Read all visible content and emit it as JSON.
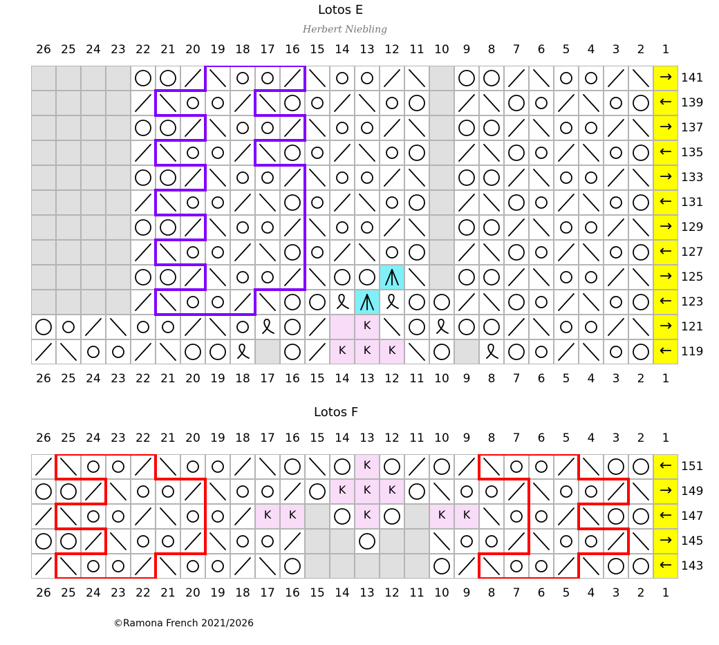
{
  "charts": [
    {
      "title": "Lotos E",
      "byline": "Herbert Niebling",
      "column_labels": [
        "26",
        "25",
        "24",
        "23",
        "22",
        "21",
        "20",
        "19",
        "18",
        "17",
        "16",
        "15",
        "14",
        "13",
        "12",
        "11",
        "10",
        "9",
        "8",
        "7",
        "6",
        "5",
        "4",
        "3",
        "2",
        "1"
      ],
      "rows": [
        {
          "number": "141",
          "arrow": "→",
          "cells": [
            "shade",
            "shade",
            "shade",
            "shade",
            "O",
            "O",
            "/",
            "\\",
            "o",
            "o",
            "/",
            "\\",
            "o",
            "o",
            "/",
            "\\",
            "shade",
            "O",
            "O",
            "/",
            "\\",
            "o",
            "o",
            "/",
            "\\",
            "arrow"
          ]
        },
        {
          "number": "139",
          "arrow": "←",
          "cells": [
            "shade",
            "shade",
            "shade",
            "shade",
            "/",
            "\\",
            "o",
            "o",
            "/",
            "\\",
            "O",
            "o",
            "/",
            "\\",
            "o",
            "O",
            "shade",
            "/",
            "\\",
            "O",
            "o",
            "/",
            "\\",
            "o",
            "O",
            "arrow"
          ]
        },
        {
          "number": "137",
          "arrow": "→",
          "cells": [
            "shade",
            "shade",
            "shade",
            "shade",
            "O",
            "O",
            "/",
            "\\",
            "o",
            "o",
            "/",
            "\\",
            "o",
            "o",
            "/",
            "\\",
            "shade",
            "O",
            "O",
            "/",
            "\\",
            "o",
            "o",
            "/",
            "\\",
            "arrow"
          ]
        },
        {
          "number": "135",
          "arrow": "←",
          "cells": [
            "shade",
            "shade",
            "shade",
            "shade",
            "/",
            "\\",
            "o",
            "o",
            "/",
            "\\",
            "O",
            "o",
            "/",
            "\\",
            "o",
            "O",
            "shade",
            "/",
            "\\",
            "O",
            "o",
            "/",
            "\\",
            "o",
            "O",
            "arrow"
          ]
        },
        {
          "number": "133",
          "arrow": "→",
          "cells": [
            "shade",
            "shade",
            "shade",
            "shade",
            "O",
            "O",
            "/",
            "\\",
            "o",
            "o",
            "/",
            "\\",
            "o",
            "o",
            "/",
            "\\",
            "shade",
            "O",
            "O",
            "/",
            "\\",
            "o",
            "o",
            "/",
            "\\",
            "arrow"
          ]
        },
        {
          "number": "131",
          "arrow": "←",
          "cells": [
            "shade",
            "shade",
            "shade",
            "shade",
            "/",
            "\\",
            "o",
            "o",
            "/",
            "\\",
            "O",
            "o",
            "/",
            "\\",
            "o",
            "O",
            "shade",
            "/",
            "\\",
            "O",
            "o",
            "/",
            "\\",
            "o",
            "O",
            "arrow"
          ]
        },
        {
          "number": "129",
          "arrow": "→",
          "cells": [
            "shade",
            "shade",
            "shade",
            "shade",
            "O",
            "O",
            "/",
            "\\",
            "o",
            "o",
            "/",
            "\\",
            "o",
            "o",
            "/",
            "\\",
            "shade",
            "O",
            "O",
            "/",
            "\\",
            "o",
            "o",
            "/",
            "\\",
            "arrow"
          ]
        },
        {
          "number": "127",
          "arrow": "←",
          "cells": [
            "shade",
            "shade",
            "shade",
            "shade",
            "/",
            "\\",
            "o",
            "o",
            "/",
            "\\",
            "O",
            "o",
            "/",
            "\\",
            "o",
            "O",
            "shade",
            "/",
            "\\",
            "O",
            "o",
            "/",
            "\\",
            "o",
            "O",
            "arrow"
          ]
        },
        {
          "number": "125",
          "arrow": "→",
          "cells": [
            "shade",
            "shade",
            "shade",
            "shade",
            "O",
            "O",
            "/",
            "\\",
            "o",
            "o",
            "/",
            "\\",
            "O",
            "O",
            "A",
            "\\",
            "shade",
            "O",
            "O",
            "/",
            "\\",
            "o",
            "o",
            "/",
            "\\",
            "arrow"
          ]
        },
        {
          "number": "123",
          "arrow": "←",
          "cells": [
            "shade",
            "shade",
            "shade",
            "shade",
            "/",
            "\\",
            "o",
            "o",
            "/",
            "\\",
            "O",
            "O",
            "Q",
            "A",
            "Q",
            "O",
            "O",
            "/",
            "\\",
            "O",
            "o",
            "/",
            "\\",
            "o",
            "O",
            "arrow"
          ]
        },
        {
          "number": "121",
          "arrow": "→",
          "cells": [
            "O",
            "o",
            "/",
            "\\",
            "o",
            "o",
            "/",
            "\\",
            "o",
            "Q",
            "O",
            "/",
            "blank",
            "K",
            "\\",
            "O",
            "Q",
            "O",
            "O",
            "/",
            "\\",
            "o",
            "o",
            "/",
            "\\",
            "arrow"
          ]
        },
        {
          "number": "119",
          "arrow": "←",
          "cells": [
            "/",
            "\\",
            "o",
            "o",
            "/",
            "\\",
            "O",
            "O",
            "Q",
            "shade",
            "O",
            "/",
            "K",
            "K",
            "K",
            "\\",
            "O",
            "shade",
            "Q",
            "O",
            "o",
            "/",
            "\\",
            "o",
            "O",
            "arrow"
          ]
        }
      ]
    },
    {
      "title": "Lotos F",
      "column_labels": [
        "26",
        "25",
        "24",
        "23",
        "22",
        "21",
        "20",
        "19",
        "18",
        "17",
        "16",
        "15",
        "14",
        "13",
        "12",
        "11",
        "10",
        "9",
        "8",
        "7",
        "6",
        "5",
        "4",
        "3",
        "2",
        "1"
      ],
      "rows": [
        {
          "number": "151",
          "arrow": "←",
          "cells": [
            "/",
            "\\",
            "o",
            "o",
            "/",
            "\\",
            "o",
            "o",
            "/",
            "\\",
            "O",
            "\\",
            "O",
            "K",
            "O",
            "/",
            "O",
            "/",
            "\\",
            "o",
            "o",
            "/",
            "\\",
            "O",
            "O",
            "arrow"
          ]
        },
        {
          "number": "149",
          "arrow": "→",
          "cells": [
            "O",
            "O",
            "/",
            "\\",
            "o",
            "o",
            "/",
            "\\",
            "o",
            "o",
            "/",
            "O",
            "K",
            "K",
            "K",
            "O",
            "\\",
            "o",
            "o",
            "/",
            "\\",
            "o",
            "o",
            "/",
            "\\",
            "arrow"
          ]
        },
        {
          "number": "147",
          "arrow": "←",
          "cells": [
            "/",
            "\\",
            "o",
            "o",
            "/",
            "\\",
            "o",
            "o",
            "/",
            "K",
            "K",
            "shade",
            "O",
            "K",
            "O",
            "shade",
            "K",
            "K",
            "\\",
            "o",
            "o",
            "/",
            "\\",
            "O",
            "O",
            "arrow"
          ]
        },
        {
          "number": "145",
          "arrow": "→",
          "cells": [
            "O",
            "O",
            "/",
            "\\",
            "o",
            "o",
            "/",
            "\\",
            "o",
            "o",
            "/",
            "shade",
            "shade",
            "O",
            "shade",
            "shade",
            "\\",
            "o",
            "o",
            "/",
            "\\",
            "o",
            "o",
            "/",
            "\\",
            "arrow"
          ]
        },
        {
          "number": "143",
          "arrow": "←",
          "cells": [
            "/",
            "\\",
            "o",
            "o",
            "/",
            "\\",
            "o",
            "o",
            "/",
            "\\",
            "O",
            "shade",
            "shade",
            "shade",
            "shade",
            "shade",
            "O",
            "/",
            "\\",
            "o",
            "o",
            "/",
            "\\",
            "O",
            "O",
            "arrow"
          ]
        }
      ]
    }
  ],
  "copyright": "©Ramona French 2021/2026",
  "colors": {
    "highlight_e": "#8000ff",
    "highlight_f": "#ff0000",
    "arrow_bg": "#ffff00",
    "knit_bg": "#f8dcf8",
    "cyan_bg": "#7ff0f8",
    "shade_bg": "#e0e0e0"
  }
}
